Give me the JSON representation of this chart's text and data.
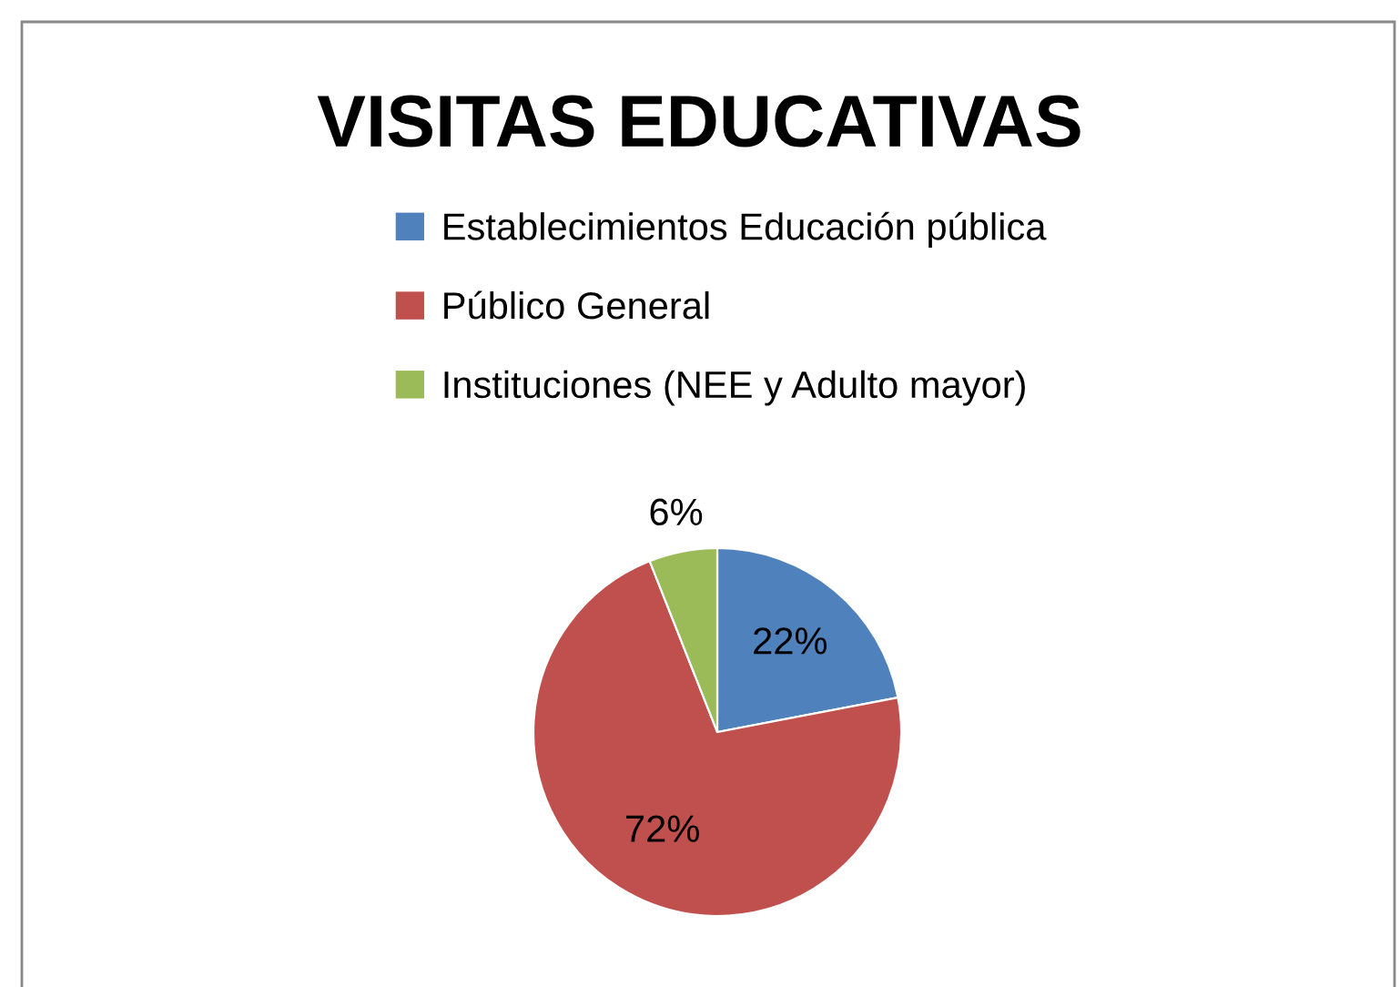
{
  "chart_data": {
    "type": "pie",
    "title": "VISITAS EDUCATIVAS",
    "categories": [
      "Establecimientos Educación pública",
      "Público General",
      "Instituciones (NEE y Adulto mayor)"
    ],
    "values": [
      22,
      72,
      6
    ],
    "colors": [
      "#4f81bd",
      "#c0504d",
      "#9bbb59"
    ],
    "value_labels": [
      "22%",
      "72%",
      "6%"
    ],
    "legend": "top"
  }
}
